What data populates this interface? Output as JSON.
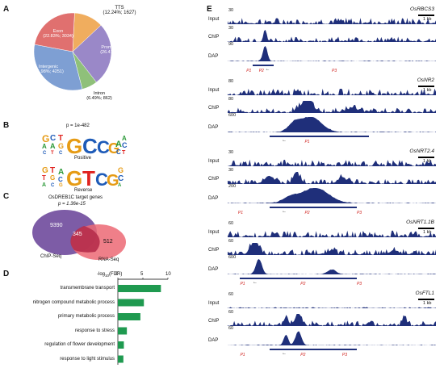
{
  "panels": {
    "A": "A",
    "B": "B",
    "C": "C",
    "D": "D",
    "E": "E"
  },
  "pie": {
    "slices": [
      {
        "name": "TTS",
        "label": "TTS",
        "value_text": "(12.24%; 1627)",
        "pct": 12.24,
        "color": "#f0ad5e"
      },
      {
        "name": "Promoter-TSS",
        "label": "Promoter-TSS",
        "value_text": "(26.47%; 3518)",
        "pct": 26.47,
        "color": "#9a88c8"
      },
      {
        "name": "Intron",
        "label": "Intron",
        "value_text": "(6.49%; 862)",
        "pct": 6.49,
        "color": "#8fc07a"
      },
      {
        "name": "Intergenic",
        "label": "Intergenic",
        "value_text": "(31.98%; 4251)",
        "pct": 31.98,
        "color": "#7e9fd3"
      },
      {
        "name": "Exon",
        "label": "Exon",
        "value_text": "(22.83%; 3034)",
        "pct": 22.83,
        "color": "#e0706f"
      }
    ]
  },
  "motif": {
    "pvalue": "p = 1e-482",
    "positive_label": "Positive",
    "reverse_label": "Reverse"
  },
  "venn": {
    "title": "OsDREB1C target genes",
    "pvalue": "p = 1.36e-15",
    "left_count": "9390",
    "overlap_count": "345",
    "right_count": "512",
    "left_label": "ChIP-Seq",
    "right_label": "RNA-Seq"
  },
  "bar": {
    "axis_label_prefix": "-log",
    "axis_label_sub": "10",
    "axis_label_suffix": "(FDR)",
    "ticks": [
      "0",
      "5",
      "10"
    ],
    "categories": [
      "transmembrane transport",
      "nitrogen compound metabolic process",
      "primary metabolic process",
      "response to stress",
      "regulation of flower development",
      "response to light stimulus"
    ]
  },
  "chart_data": {
    "type": "bar",
    "orientation": "horizontal",
    "categories": [
      "transmembrane transport",
      "nitrogen compound metabolic process",
      "primary metabolic process",
      "response to stress",
      "regulation of flower development",
      "response to light stimulus"
    ],
    "values": [
      8.6,
      5.2,
      4.5,
      1.8,
      1.2,
      1.1
    ],
    "xlabel": "-log10(FDR)",
    "xlim": [
      0,
      10
    ],
    "color": "#1f9a50"
  },
  "tracks": {
    "genes": [
      {
        "name": "OsRBCS3",
        "input_scale": "30",
        "chip_scale": "30",
        "dap_scale": "90",
        "kb": "1 kb",
        "p1": "P1",
        "p2": "P2",
        "p3": "",
        "p4": "P3"
      },
      {
        "name": "OsNR2",
        "input_scale": "80",
        "chip_scale": "80",
        "dap_scale": "600",
        "kb": "1 kb",
        "p1": "",
        "p2": "P1",
        "p3": "",
        "p4": ""
      },
      {
        "name": "OsNRT2.4",
        "input_scale": "30",
        "chip_scale": "30",
        "dap_scale": "200",
        "kb": "1 kb",
        "p1": "P1",
        "p2": "P2",
        "p3": "P3",
        "p4": ""
      },
      {
        "name": "OsNRT1.1B",
        "input_scale": "60",
        "chip_scale": "60",
        "dap_scale": "600",
        "kb": "1 kb",
        "p1": "P1",
        "p2": "P2",
        "p3": "P3",
        "p4": ""
      },
      {
        "name": "OsFTL1",
        "input_scale": "60",
        "chip_scale": "60",
        "dap_scale": "60",
        "kb": "1 kb",
        "p1": "P1",
        "p2": "P2",
        "p3": "P3",
        "p4": ""
      }
    ],
    "row_labels": {
      "input": "Input",
      "chip": "ChIP",
      "dap": "DAP"
    },
    "track_color": "#1f2f7a",
    "peak_label_color": "#d0231f"
  }
}
